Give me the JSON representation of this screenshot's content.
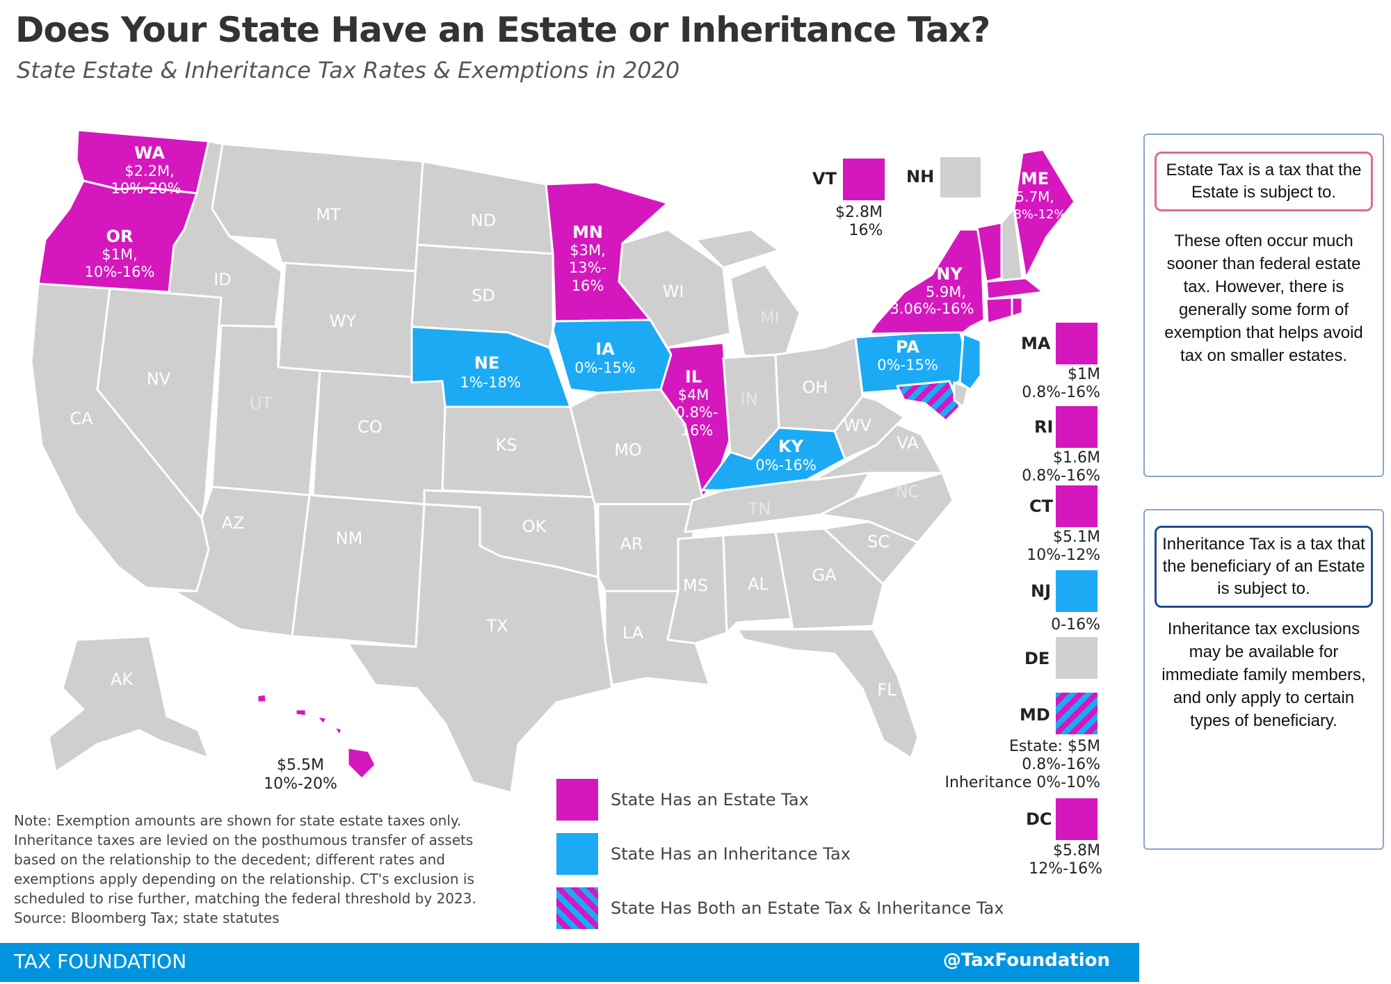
{
  "title": "Does Your State Have an Estate or Inheritance Tax?",
  "subtitle": "State Estate & Inheritance Tax Rates & Exemptions in 2020",
  "colors": {
    "estate": "#d517be",
    "inheritance": "#1caaf5",
    "none": "#cfcfcf",
    "footer": "#0094e0"
  },
  "states": {
    "WA": {
      "code": "WA",
      "detail1": "$2.2M,",
      "detail2": "10%-20%",
      "tax": "estate"
    },
    "OR": {
      "code": "OR",
      "detail1": "$1M,",
      "detail2": "10%-16%",
      "tax": "estate"
    },
    "MN": {
      "code": "MN",
      "detail1": "$3M,",
      "detail2": "13%-",
      "detail3": "16%",
      "tax": "estate"
    },
    "IL": {
      "code": "IL",
      "detail1": "$4M",
      "detail2": "0.8%-",
      "detail3": "16%",
      "tax": "estate"
    },
    "NY": {
      "code": "NY",
      "detail1": "5.9M,",
      "detail2": "3.06%-16%",
      "tax": "estate"
    },
    "ME": {
      "code": "ME",
      "detail1": "5.7M,",
      "detail2": "8%-12%",
      "tax": "estate"
    },
    "NE": {
      "code": "NE",
      "detail1": "1%-18%",
      "tax": "inheritance"
    },
    "IA": {
      "code": "IA",
      "detail1": "0%-15%",
      "tax": "inheritance"
    },
    "KY": {
      "code": "KY",
      "detail1": "0%-16%",
      "tax": "inheritance"
    },
    "PA": {
      "code": "PA",
      "detail1": "0%-15%",
      "tax": "inheritance"
    },
    "HI": {
      "detail1": "$5.5M",
      "detail2": "10%-20%",
      "tax": "estate"
    },
    "MT": {
      "code": "MT"
    },
    "ID": {
      "code": "ID"
    },
    "WY": {
      "code": "WY"
    },
    "NV": {
      "code": "NV"
    },
    "CA": {
      "code": "CA"
    },
    "UT": {
      "code": "UT"
    },
    "CO": {
      "code": "CO"
    },
    "AZ": {
      "code": "AZ"
    },
    "NM": {
      "code": "NM"
    },
    "ND": {
      "code": "ND"
    },
    "SD": {
      "code": "SD"
    },
    "KS": {
      "code": "KS"
    },
    "OK": {
      "code": "OK"
    },
    "TX": {
      "code": "TX"
    },
    "MO": {
      "code": "MO"
    },
    "AR": {
      "code": "AR"
    },
    "LA": {
      "code": "LA"
    },
    "WI": {
      "code": "WI"
    },
    "MI": {
      "code": "MI"
    },
    "IN": {
      "code": "IN"
    },
    "OH": {
      "code": "OH"
    },
    "TN": {
      "code": "TN"
    },
    "MS": {
      "code": "MS"
    },
    "AL": {
      "code": "AL"
    },
    "GA": {
      "code": "GA"
    },
    "FL": {
      "code": "FL"
    },
    "SC": {
      "code": "SC"
    },
    "NC": {
      "code": "NC"
    },
    "VA": {
      "code": "VA"
    },
    "WV": {
      "code": "WV"
    },
    "AK": {
      "code": "AK"
    }
  },
  "callouts": {
    "VT": {
      "code": "VT",
      "line1": "$2.8M",
      "line2": "16%",
      "tax": "estate"
    },
    "NH": {
      "code": "NH",
      "tax": "none"
    },
    "MA": {
      "code": "MA",
      "line1": "$1M",
      "line2": "0.8%-16%",
      "tax": "estate"
    },
    "RI": {
      "code": "RI",
      "line1": "$1.6M",
      "line2": "0.8%-16%",
      "tax": "estate"
    },
    "CT": {
      "code": "CT",
      "line1": "$5.1M",
      "line2": "10%-12%",
      "tax": "estate"
    },
    "NJ": {
      "code": "NJ",
      "line1": "0-16%",
      "tax": "inheritance"
    },
    "DE": {
      "code": "DE",
      "tax": "none"
    },
    "MD": {
      "code": "MD",
      "line1": "Estate: $5M",
      "line2": "0.8%-16%",
      "line3": "Inheritance 0%-10%",
      "tax": "both"
    },
    "DC": {
      "code": "DC",
      "line1": "$5.8M",
      "line2": "12%-16%",
      "tax": "estate"
    }
  },
  "legend": {
    "estate": "State Has an Estate Tax",
    "inheritance": "State Has an Inheritance Tax",
    "both": "State Has Both an Estate Tax & Inheritance Tax"
  },
  "note": "Note: Exemption amounts are shown for state estate taxes only. Inheritance taxes are levied on the posthumous transfer of assets based on the relationship to the decedent; different rates and exemptions apply depending on the relationship. CT's exclusion is scheduled to rise further, matching the federal threshold by 2023.",
  "source": "Source: Bloomberg Tax; state statutes",
  "footer": {
    "left": "TAX FOUNDATION",
    "right": "@TaxFoundation"
  },
  "panels": {
    "estate": {
      "definition": "Estate Tax is a tax that the Estate is subject to.",
      "body": "These often occur much sooner than federal estate tax. However, there is generally some form of exemption that helps avoid tax on smaller estates."
    },
    "inheritance": {
      "definition": "Inheritance Tax is a tax that the beneficiary of an Estate is subject to.",
      "body": "Inheritance tax exclusions may be available for immediate family members, and only apply to certain types of beneficiary."
    }
  }
}
